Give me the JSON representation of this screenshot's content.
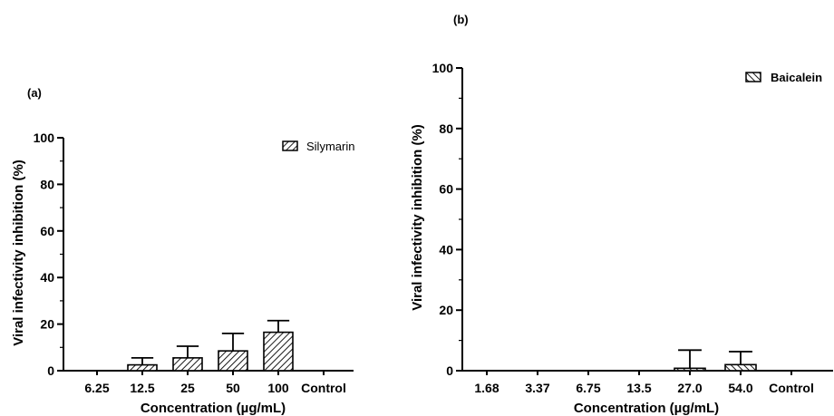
{
  "chart_data": [
    {
      "type": "bar",
      "panel_label": "(a)",
      "title": "",
      "xlabel": "Concentration (µg/mL)",
      "ylabel": "Viral infectivity inhibition (%)",
      "ylim": [
        0,
        100
      ],
      "yticks": [
        0,
        20,
        40,
        60,
        80,
        100
      ],
      "categories": [
        "6.25",
        "12.5",
        "25",
        "50",
        "100",
        "Control"
      ],
      "series": [
        {
          "name": "Silymarin",
          "values": [
            0,
            2.5,
            5.5,
            8.5,
            16.5,
            0
          ],
          "error": [
            0,
            3,
            5,
            7.5,
            5,
            0
          ],
          "hatch": "forward-diagonal"
        }
      ],
      "legend_position": "top-right",
      "grid": false
    },
    {
      "type": "bar",
      "panel_label": "(b)",
      "title": "",
      "xlabel": "Concentration (µg/mL)",
      "ylabel": "Viral infectivity inhibition (%)",
      "ylim": [
        0,
        100
      ],
      "yticks": [
        0,
        20,
        40,
        60,
        80,
        100
      ],
      "categories": [
        "1.68",
        "3.37",
        "6.75",
        "13.5",
        "27.0",
        "54.0",
        "Control"
      ],
      "series": [
        {
          "name": "Baicalein",
          "values": [
            0,
            0,
            0,
            0,
            0.8,
            2,
            0
          ],
          "error": [
            0,
            0,
            0,
            0,
            6,
            4.3,
            0
          ],
          "hatch": "back-diagonal"
        }
      ],
      "legend_position": "top-right",
      "grid": false
    }
  ],
  "colors": {
    "axis": "#000000",
    "bar_fill": "#ffffff",
    "hatch": "#000000"
  }
}
